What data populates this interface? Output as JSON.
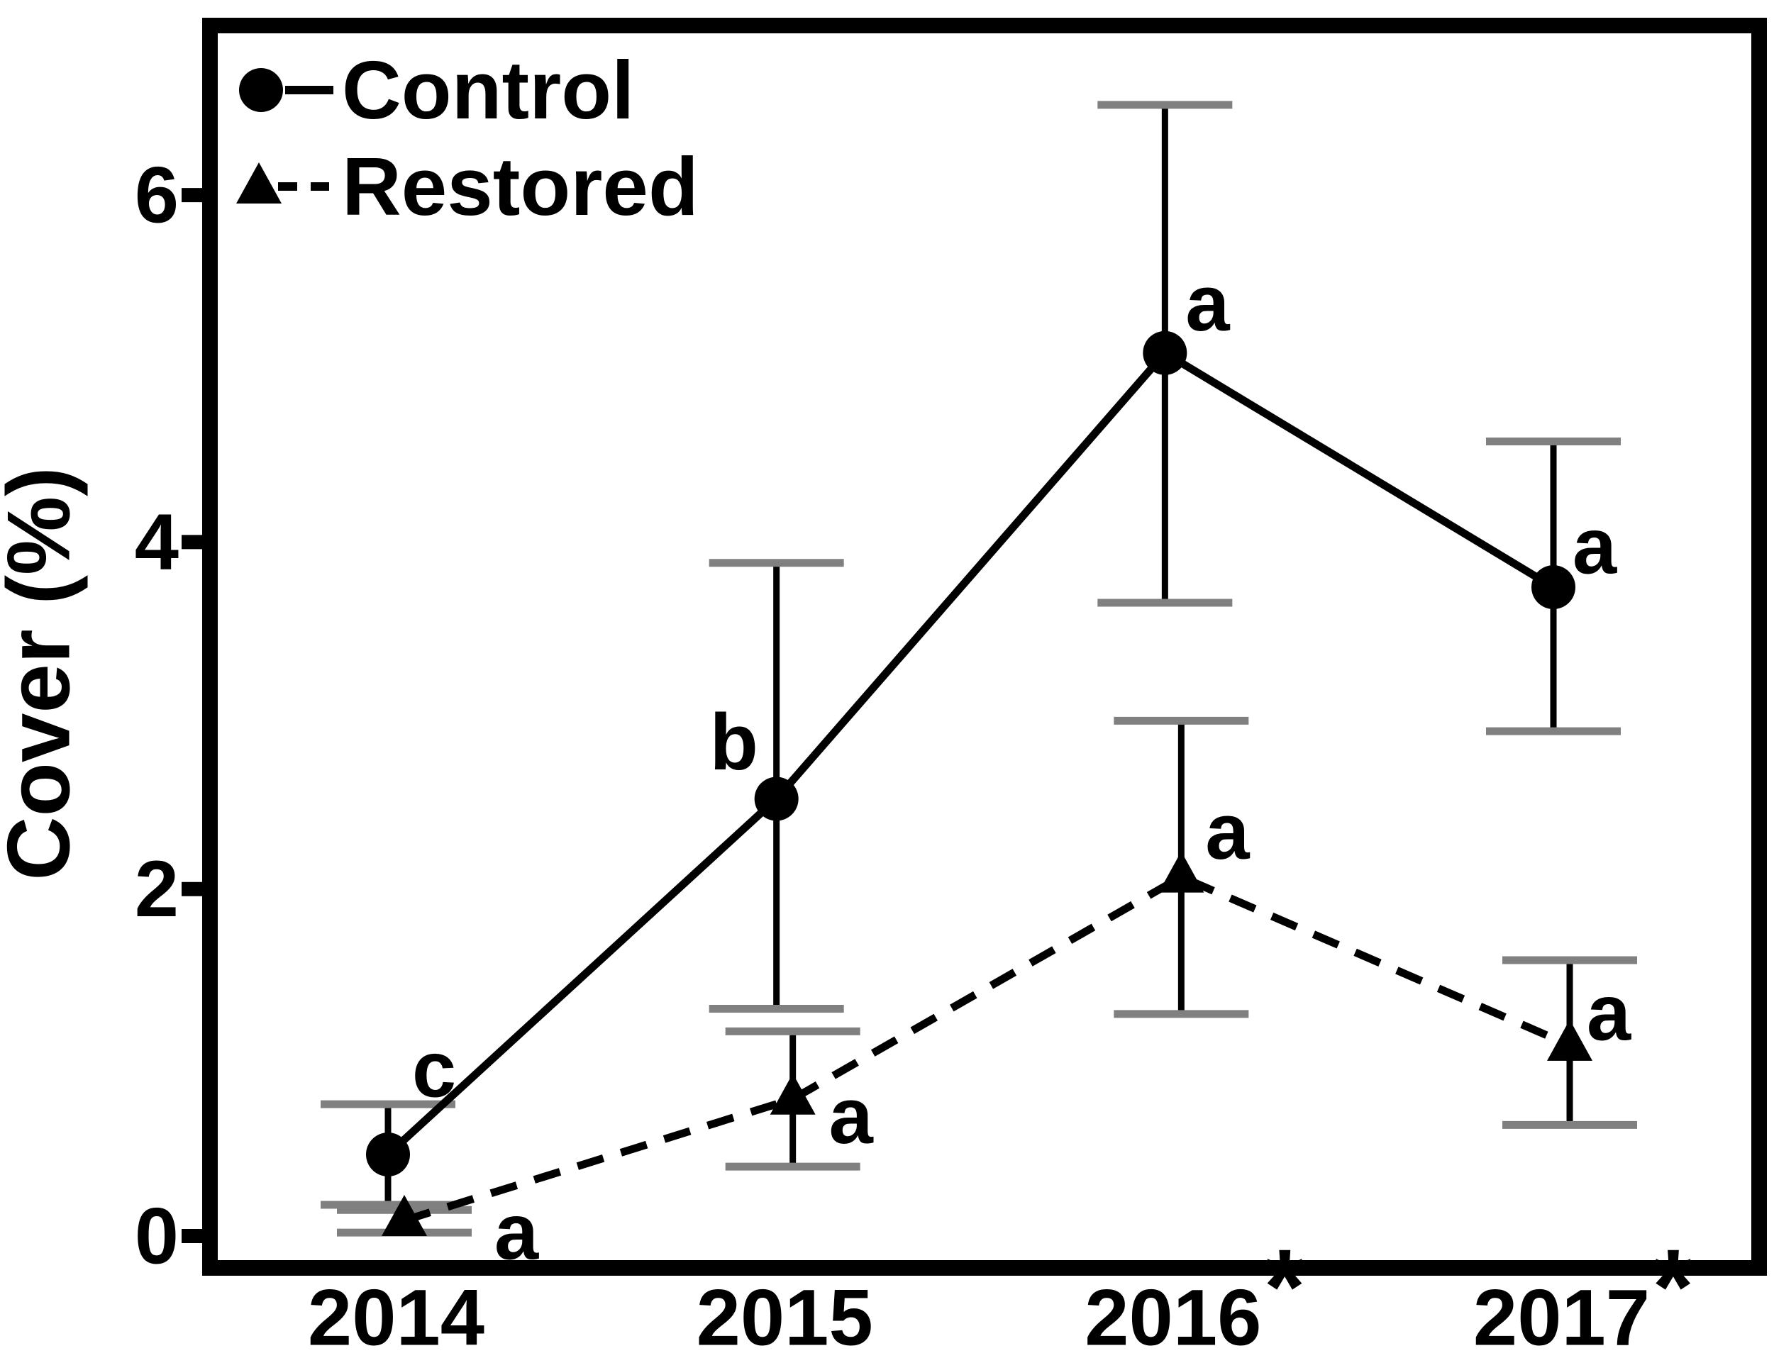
{
  "figure": {
    "background": "#ffffff",
    "ink_color": "#000000",
    "error_cap_color": "#808080"
  },
  "y_axis": {
    "title": "Cover (%)",
    "tick_labels": [
      "0",
      "2",
      "4",
      "6"
    ],
    "tick_values": [
      0,
      2,
      4,
      6
    ]
  },
  "x_axis": {
    "labels": [
      {
        "text": "2014",
        "starred": false
      },
      {
        "text": "2015",
        "starred": false
      },
      {
        "text": "2016",
        "starred": true
      },
      {
        "text": "2017",
        "starred": true
      }
    ],
    "star_char": "*"
  },
  "legend_items": [
    {
      "label": "Control",
      "marker": "circle",
      "line_style": "solid"
    },
    {
      "label": "Restored",
      "marker": "triangle",
      "line_style": "dashed"
    }
  ],
  "chart_data": {
    "type": "line",
    "x": [
      "2014",
      "2015",
      "2016",
      "2017"
    ],
    "title": "",
    "xlabel": "",
    "ylabel": "Cover (%)",
    "ylim": [
      0,
      7
    ],
    "grid": false,
    "legend_position": "top-left-inside",
    "series": [
      {
        "name": "Control",
        "marker": "circle",
        "line_style": "solid",
        "values": [
          0.47,
          2.52,
          5.09,
          3.74
        ],
        "err_low": [
          0.18,
          1.31,
          3.65,
          2.91
        ],
        "err_high": [
          0.76,
          3.88,
          6.52,
          4.58
        ],
        "letters": [
          "c",
          "b",
          "a",
          "a"
        ]
      },
      {
        "name": "Restored",
        "marker": "triangle",
        "line_style": "dashed",
        "values": [
          0.09,
          0.79,
          2.07,
          1.1
        ],
        "err_low": [
          0.02,
          0.4,
          1.28,
          0.64
        ],
        "err_high": [
          0.15,
          1.18,
          2.97,
          1.59
        ],
        "letters": [
          "a",
          "a",
          "a",
          "a"
        ]
      }
    ]
  }
}
